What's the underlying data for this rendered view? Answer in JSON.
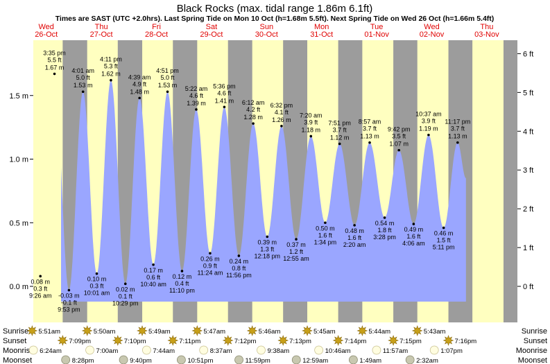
{
  "title": "Black Rocks (max. tidal range 1.86m 6.1ft)",
  "subtitle": "Times are SAST (UTC +2.0hrs). Last Spring Tide on Mon 10 Oct (h=1.68m 5.5ft). Next Spring Tide on Wed 26 Oct (h=1.66m 5.4ft)",
  "colors": {
    "night": "#9c9c9c",
    "day": "#ffffc0",
    "tide_fill": "#9aa6ff",
    "weekday_text": "#e00000",
    "sun_icon": "#c8a018",
    "moon_icon": "#fffde0",
    "moonset_icon": "#c8c8b0"
  },
  "chart_data": {
    "type": "area",
    "title": "Black Rocks (max. tidal range 1.86m 6.1ft)",
    "xlabel": "",
    "ylabel": "",
    "ylim_m": [
      -0.13,
      1.9
    ],
    "yticks_m": [
      "0.0 m",
      "0.5 m",
      "1.0 m",
      "1.5 m"
    ],
    "yticks_ft": [
      "0 ft",
      "1 ft",
      "2 ft",
      "3 ft",
      "4 ft",
      "5 ft",
      "6 ft"
    ],
    "days": [
      {
        "weekday": "Wed",
        "date": "26-Oct"
      },
      {
        "weekday": "Thu",
        "date": "27-Oct"
      },
      {
        "weekday": "Fri",
        "date": "28-Oct"
      },
      {
        "weekday": "Sat",
        "date": "29-Oct"
      },
      {
        "weekday": "Sun",
        "date": "30-Oct"
      },
      {
        "weekday": "Mon",
        "date": "31-Oct"
      },
      {
        "weekday": "Tue",
        "date": "01-Nov"
      },
      {
        "weekday": "Wed",
        "date": "02-Nov"
      },
      {
        "weekday": "Thu",
        "date": "03-Nov"
      }
    ],
    "tides": [
      {
        "type": "high",
        "day": 0,
        "time": "3:35 pm",
        "m": 1.67,
        "ft": "5.5 ft",
        "m_label": "1.67 m"
      },
      {
        "type": "low",
        "day": 0,
        "time": "9:26 am",
        "m": 0.08,
        "ft": "0.3 ft",
        "m_label": "0.08 m"
      },
      {
        "type": "low",
        "day": 0,
        "time": "9:53 pm",
        "m": -0.03,
        "ft": "-0.1 ft",
        "m_label": "-0.03 m"
      },
      {
        "type": "high",
        "day": 1,
        "time": "4:01 am",
        "m": 1.53,
        "ft": "5.0 ft",
        "m_label": "1.53 m"
      },
      {
        "type": "high",
        "day": 1,
        "time": "4:11 pm",
        "m": 1.62,
        "ft": "5.3 ft",
        "m_label": "1.62 m"
      },
      {
        "type": "low",
        "day": 1,
        "time": "10:01 am",
        "m": 0.1,
        "ft": "0.3 ft",
        "m_label": "0.10 m"
      },
      {
        "type": "low",
        "day": 1,
        "time": "10:29 pm",
        "m": 0.02,
        "ft": "0.1 ft",
        "m_label": "0.02 m"
      },
      {
        "type": "high",
        "day": 2,
        "time": "4:39 am",
        "m": 1.48,
        "ft": "4.9 ft",
        "m_label": "1.48 m"
      },
      {
        "type": "high",
        "day": 2,
        "time": "4:51 pm",
        "m": 1.53,
        "ft": "5.0 ft",
        "m_label": "1.53 m"
      },
      {
        "type": "low",
        "day": 2,
        "time": "10:40 am",
        "m": 0.17,
        "ft": "0.6 ft",
        "m_label": "0.17 m"
      },
      {
        "type": "low",
        "day": 2,
        "time": "11:10 pm",
        "m": 0.12,
        "ft": "0.4 ft",
        "m_label": "0.12 m"
      },
      {
        "type": "high",
        "day": 3,
        "time": "5:22 am",
        "m": 1.39,
        "ft": "4.6 ft",
        "m_label": "1.39 m"
      },
      {
        "type": "high",
        "day": 3,
        "time": "5:36 pm",
        "m": 1.41,
        "ft": "4.6 ft",
        "m_label": "1.41 m"
      },
      {
        "type": "low",
        "day": 3,
        "time": "11:24 am",
        "m": 0.26,
        "ft": "0.9 ft",
        "m_label": "0.26 m"
      },
      {
        "type": "low",
        "day": 3,
        "time": "11:56 pm",
        "m": 0.24,
        "ft": "0.8 ft",
        "m_label": "0.24 m"
      },
      {
        "type": "high",
        "day": 4,
        "time": "6:12 am",
        "m": 1.28,
        "ft": "4.2 ft",
        "m_label": "1.28 m"
      },
      {
        "type": "high",
        "day": 4,
        "time": "6:32 pm",
        "m": 1.26,
        "ft": "4.1 ft",
        "m_label": "1.26 m"
      },
      {
        "type": "low",
        "day": 4,
        "time": "12:18 pm",
        "m": 0.39,
        "ft": "1.3 ft",
        "m_label": "0.39 m"
      },
      {
        "type": "low",
        "day": 5,
        "time": "12:55 am",
        "m": 0.37,
        "ft": "1.2 ft",
        "m_label": "0.37 m"
      },
      {
        "type": "high",
        "day": 5,
        "time": "7:20 am",
        "m": 1.18,
        "ft": "3.9 ft",
        "m_label": "1.18 m"
      },
      {
        "type": "high",
        "day": 5,
        "time": "7:51 pm",
        "m": 1.12,
        "ft": "3.7 ft",
        "m_label": "1.12 m"
      },
      {
        "type": "low",
        "day": 5,
        "time": "1:34 pm",
        "m": 0.5,
        "ft": "1.6 ft",
        "m_label": "0.50 m"
      },
      {
        "type": "low",
        "day": 6,
        "time": "2:20 am",
        "m": 0.48,
        "ft": "1.6 ft",
        "m_label": "0.48 m"
      },
      {
        "type": "high",
        "day": 6,
        "time": "8:57 am",
        "m": 1.13,
        "ft": "3.7 ft",
        "m_label": "1.13 m"
      },
      {
        "type": "high",
        "day": 6,
        "time": "9:42 pm",
        "m": 1.07,
        "ft": "3.5 ft",
        "m_label": "1.07 m"
      },
      {
        "type": "low",
        "day": 6,
        "time": "3:28 pm",
        "m": 0.54,
        "ft": "1.8 ft",
        "m_label": "0.54 m"
      },
      {
        "type": "low",
        "day": 7,
        "time": "4:06 am",
        "m": 0.49,
        "ft": "1.6 ft",
        "m_label": "0.49 m"
      },
      {
        "type": "high",
        "day": 7,
        "time": "10:37 am",
        "m": 1.19,
        "ft": "3.9 ft",
        "m_label": "1.19 m"
      },
      {
        "type": "high",
        "day": 7,
        "time": "11:17 pm",
        "m": 1.13,
        "ft": "3.7 ft",
        "m_label": "1.13 m"
      },
      {
        "type": "low",
        "day": 7,
        "time": "5:11 pm",
        "m": 0.46,
        "ft": "1.5 ft",
        "m_label": "0.46 m"
      }
    ],
    "sun_moon": {
      "labels": {
        "sunrise": "Sunrise",
        "sunset": "Sunset",
        "moonrise": "Moonrise",
        "moonset": "Moonset"
      },
      "sunrise": [
        {
          "day": 0,
          "time": "5:51am"
        },
        {
          "day": 1,
          "time": "5:50am"
        },
        {
          "day": 2,
          "time": "5:49am"
        },
        {
          "day": 3,
          "time": "5:47am"
        },
        {
          "day": 4,
          "time": "5:46am"
        },
        {
          "day": 5,
          "time": "5:45am"
        },
        {
          "day": 6,
          "time": "5:44am"
        },
        {
          "day": 7,
          "time": "5:43am"
        }
      ],
      "sunset": [
        {
          "day": 0,
          "time": "7:09pm"
        },
        {
          "day": 1,
          "time": "7:10pm"
        },
        {
          "day": 2,
          "time": "7:11pm"
        },
        {
          "day": 3,
          "time": "7:12pm"
        },
        {
          "day": 4,
          "time": "7:13pm"
        },
        {
          "day": 5,
          "time": "7:14pm"
        },
        {
          "day": 6,
          "time": "7:15pm"
        },
        {
          "day": 7,
          "time": "7:16pm"
        }
      ],
      "moonrise": [
        {
          "day": 0,
          "time": "6:24am"
        },
        {
          "day": 1,
          "time": "7:00am"
        },
        {
          "day": 2,
          "time": "7:44am"
        },
        {
          "day": 3,
          "time": "8:37am"
        },
        {
          "day": 4,
          "time": "9:38am"
        },
        {
          "day": 5,
          "time": "10:46am"
        },
        {
          "day": 6,
          "time": "11:57am"
        },
        {
          "day": 7,
          "time": "1:07pm"
        }
      ],
      "moonset": [
        {
          "day": 0,
          "time": "8:28pm"
        },
        {
          "day": 1,
          "time": "9:40pm"
        },
        {
          "day": 2,
          "time": "10:51pm"
        },
        {
          "day": 3,
          "time": "11:59pm"
        },
        {
          "day": 5,
          "time": "12:59am"
        },
        {
          "day": 6,
          "time": "1:49am"
        },
        {
          "day": 7,
          "time": "2:32am"
        }
      ]
    }
  }
}
